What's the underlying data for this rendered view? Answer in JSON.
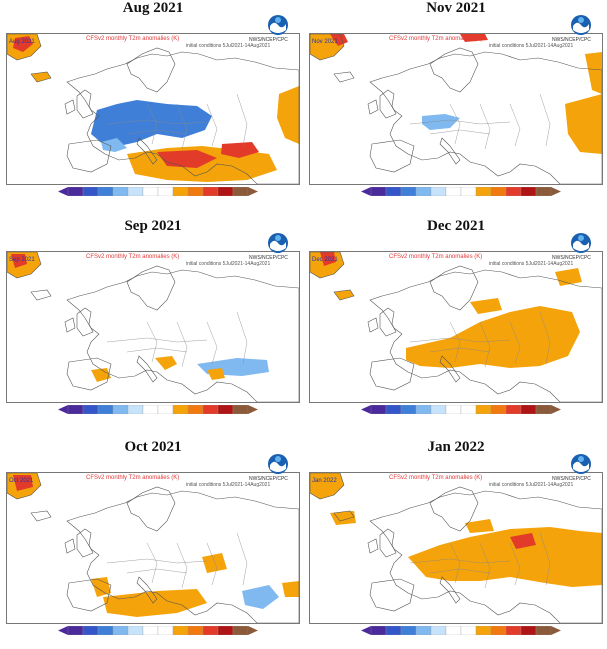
{
  "panels": [
    {
      "title": "Aug 2021",
      "map_label": "Aug 2021",
      "anomaly": "aug"
    },
    {
      "title": "Nov 2021",
      "map_label": "Nov 2021",
      "anomaly": "nov"
    },
    {
      "title": "Sep 2021",
      "map_label": "Sep 2021",
      "anomaly": "sep"
    },
    {
      "title": "Dec 2021",
      "map_label": "Dec 2021",
      "anomaly": "dec"
    },
    {
      "title": "Oct 2021",
      "map_label": "Oct 2021",
      "anomaly": "oct"
    },
    {
      "title": "Jan 2022",
      "map_label": "Jan 2022",
      "anomaly": "jan"
    }
  ],
  "map_common": {
    "model_title": "CFSv2 monthly T2m anomalies (K)",
    "subtitle": "initial conditions 5Jul2021-14Aug2021",
    "agency": "NWS/NCEP/CPC"
  },
  "colors": {
    "cold_dark": "#4b2a9b",
    "cold": "#3f7fd8",
    "cool": "#7fb9f0",
    "warm": "#f5a30a",
    "hot": "#e23b2a",
    "very_hot": "#b01515",
    "border": "#555555"
  },
  "colorbar_colors": [
    "#4b2a9b",
    "#3556c8",
    "#3f7fd8",
    "#7fb9f0",
    "#c7e2fb",
    "#ffffff",
    "#ffffff",
    "#f5a30a",
    "#f07a10",
    "#e23b2a",
    "#b01515",
    "#8a5a3a"
  ]
}
